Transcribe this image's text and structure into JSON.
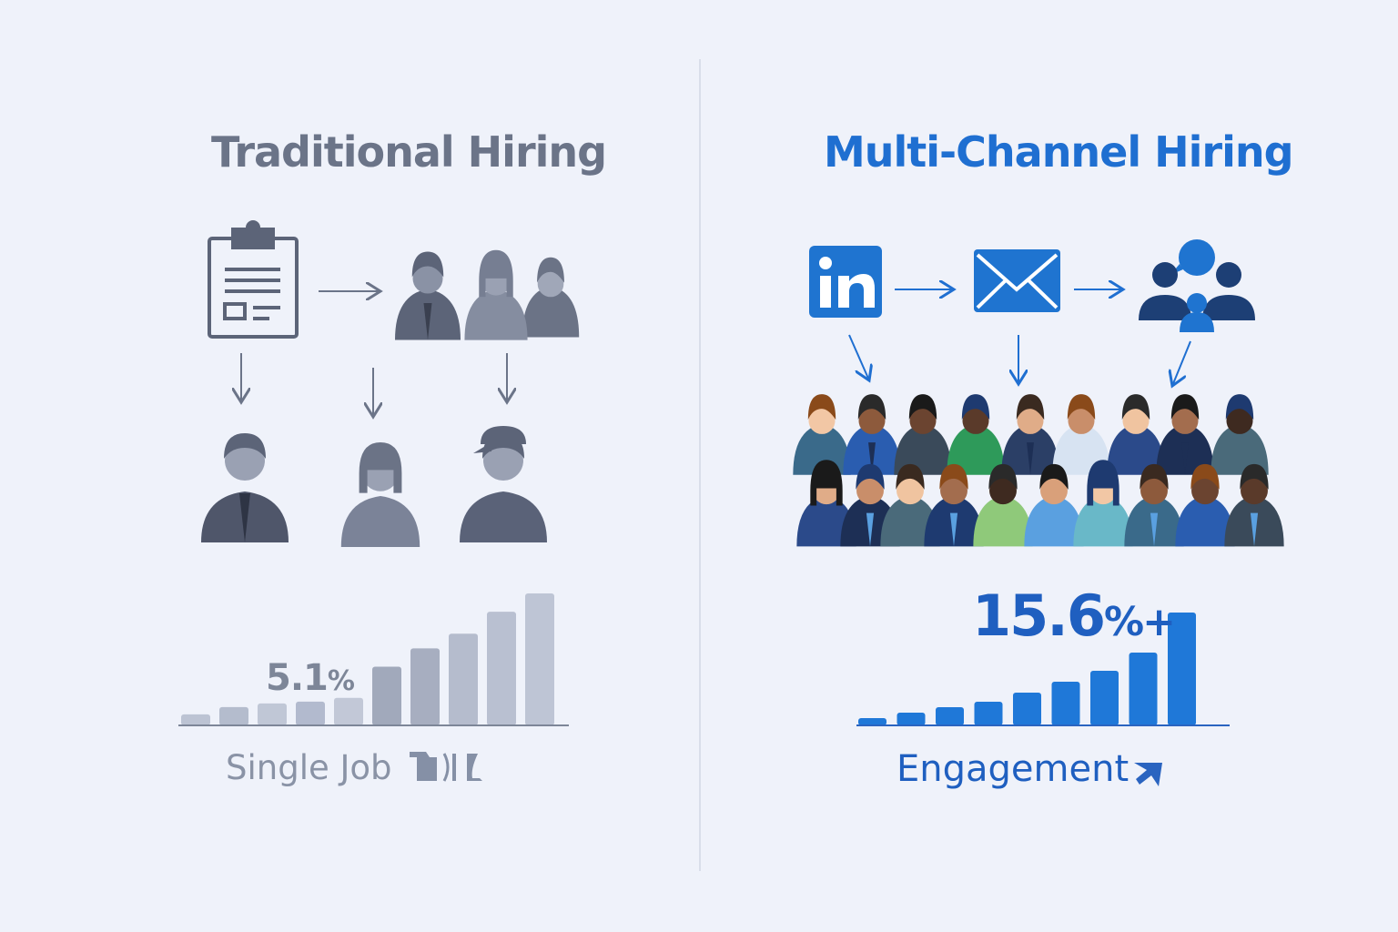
{
  "left": {
    "title": "Traditional Hiring",
    "highlight_value": "5.1",
    "highlight_unit": "%",
    "label": "Single Job",
    "label_icon": "broken-logo-glyph",
    "color": "#6b7488",
    "bars": [
      3,
      5,
      6,
      6.5,
      7.5,
      16,
      21,
      25,
      31,
      36
    ]
  },
  "right": {
    "title": "Multi-Channel Hiring",
    "highlight_value": "15.6",
    "highlight_unit": "%+",
    "label": "Engagement",
    "label_icon": "arrow-up-right-icon",
    "color": "#1f6fd1",
    "channels": [
      "linkedin-icon",
      "envelope-icon",
      "team-icon"
    ],
    "bars": [
      2,
      3.5,
      5,
      6.5,
      9,
      12,
      15,
      20,
      31
    ]
  }
}
